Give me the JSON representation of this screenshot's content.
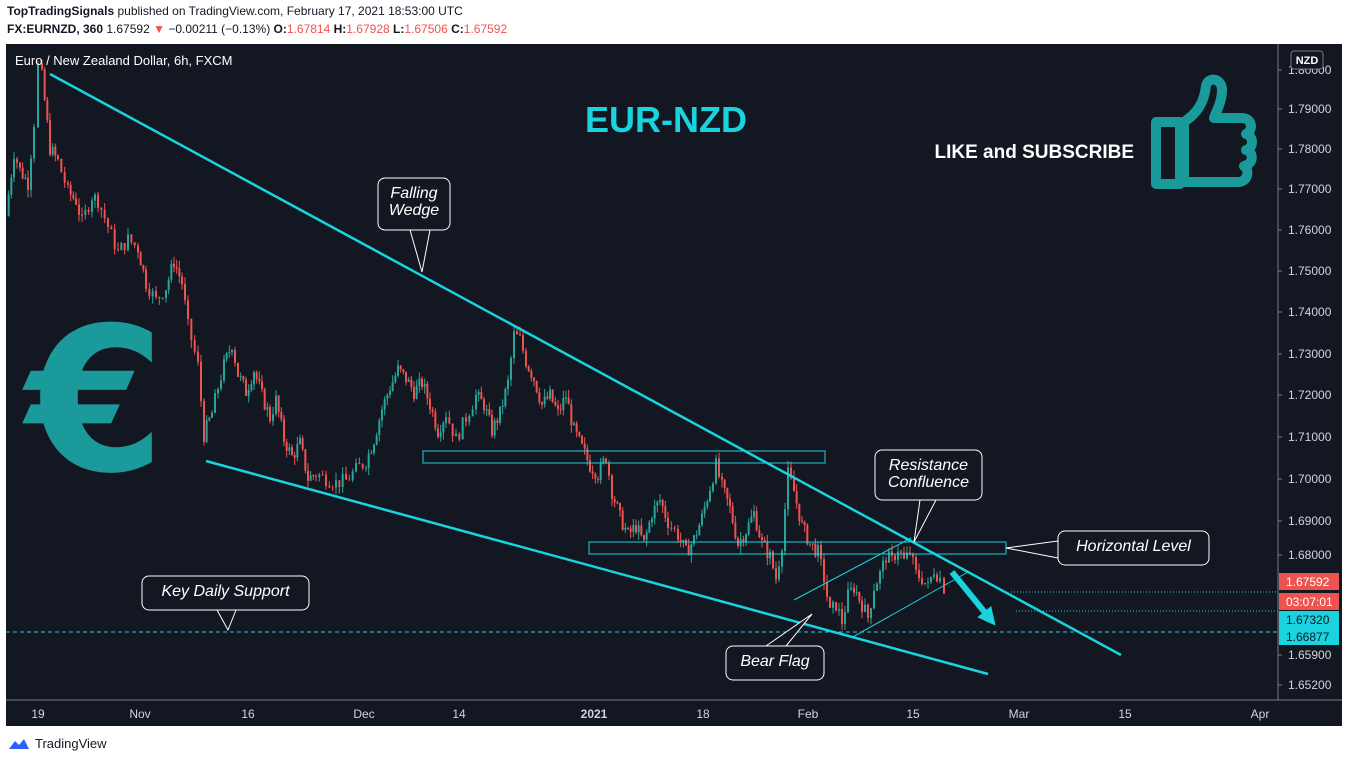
{
  "header": {
    "publisher": "TopTradingSignals",
    "published_text": "published on TradingView.com, February 17, 2021 18:53:00 UTC",
    "symbol": "FX:EURNZD, 360",
    "last": "1.67592",
    "change": "−0.00211 (−0.13%)",
    "open_label": "O:",
    "open": "1.67814",
    "high_label": "H:",
    "high": "1.67928",
    "low_label": "L:",
    "low": "1.67506",
    "close_label": "C:",
    "close": "1.67592"
  },
  "footer": {
    "brand": "TradingView"
  },
  "chart_data": {
    "type": "candlestick",
    "title": "Euro / New Zealand Dollar, 6h, FXCM",
    "headline": "EUR-NZD",
    "promo_text": "LIKE and SUBSCRIBE",
    "currency_badge": "NZD",
    "y_ticks": [
      "1.80000",
      "1.79000",
      "1.78000",
      "1.77000",
      "1.76000",
      "1.75000",
      "1.74000",
      "1.73000",
      "1.72000",
      "1.71000",
      "1.70000",
      "1.69000",
      "1.68000",
      "1.67320",
      "1.66877",
      "1.65900",
      "1.65200"
    ],
    "y_tick_values": [
      1.8,
      1.79,
      1.78,
      1.77,
      1.76,
      1.75,
      1.74,
      1.73,
      1.72,
      1.71,
      1.7,
      1.69,
      1.68,
      1.6732,
      1.66877,
      1.659,
      1.652
    ],
    "ylim": [
      1.65,
      1.801
    ],
    "x_ticks": [
      "19",
      "Nov",
      "16",
      "Dec",
      "14",
      "2021",
      "18",
      "Feb",
      "15",
      "Mar",
      "15",
      "Apr"
    ],
    "price_labels": {
      "last": "1.67592",
      "countdown": "03:07:01",
      "level_1": "1.67320",
      "level_2": "1.66877"
    },
    "annotations": [
      "Falling\nWedge",
      "Resistance\nConfluence",
      "Horizontal Level",
      "Key Daily Support",
      "Bear Flag"
    ],
    "key_levels": {
      "resistance_zone": [
        1.7055,
        1.708
      ],
      "horizontal_zone": [
        1.6812,
        1.684
      ],
      "key_daily_support": 1.66877
    },
    "price_path": [
      [
        0,
        1.7615
      ],
      [
        8,
        1.776
      ],
      [
        14,
        1.772
      ],
      [
        22,
        1.769
      ],
      [
        28,
        1.783
      ],
      [
        32,
        1.796
      ],
      [
        36,
        1.7935
      ],
      [
        44,
        1.777
      ],
      [
        52,
        1.774
      ],
      [
        62,
        1.767
      ],
      [
        70,
        1.765
      ],
      [
        76,
        1.76
      ],
      [
        86,
        1.766
      ],
      [
        92,
        1.765
      ],
      [
        102,
        1.759
      ],
      [
        112,
        1.753
      ],
      [
        122,
        1.756
      ],
      [
        132,
        1.754
      ],
      [
        140,
        1.746
      ],
      [
        150,
        1.742
      ],
      [
        160,
        1.745
      ],
      [
        168,
        1.751
      ],
      [
        176,
        1.746
      ],
      [
        182,
        1.736
      ],
      [
        192,
        1.727
      ],
      [
        198,
        1.711
      ],
      [
        206,
        1.716
      ],
      [
        212,
        1.722
      ],
      [
        218,
        1.727
      ],
      [
        226,
        1.732
      ],
      [
        232,
        1.725
      ],
      [
        240,
        1.721
      ],
      [
        248,
        1.726
      ],
      [
        256,
        1.72
      ],
      [
        264,
        1.715
      ],
      [
        270,
        1.719
      ],
      [
        278,
        1.71
      ],
      [
        286,
        1.706
      ],
      [
        294,
        1.709
      ],
      [
        302,
        1.701
      ],
      [
        310,
        1.702
      ],
      [
        320,
        1.701
      ],
      [
        330,
        1.7
      ],
      [
        340,
        1.7005
      ],
      [
        350,
        1.703
      ],
      [
        360,
        1.705
      ],
      [
        368,
        1.71
      ],
      [
        376,
        1.717
      ],
      [
        384,
        1.722
      ],
      [
        392,
        1.726
      ],
      [
        400,
        1.724
      ],
      [
        408,
        1.721
      ],
      [
        416,
        1.723
      ],
      [
        424,
        1.718
      ],
      [
        432,
        1.712
      ],
      [
        440,
        1.716
      ],
      [
        450,
        1.71
      ],
      [
        460,
        1.715
      ],
      [
        470,
        1.72
      ],
      [
        478,
        1.718
      ],
      [
        486,
        1.712
      ],
      [
        494,
        1.716
      ],
      [
        502,
        1.723
      ],
      [
        508,
        1.734
      ],
      [
        514,
        1.733
      ],
      [
        520,
        1.728
      ],
      [
        528,
        1.724
      ],
      [
        536,
        1.718
      ],
      [
        544,
        1.72
      ],
      [
        552,
        1.716
      ],
      [
        560,
        1.72
      ],
      [
        568,
        1.712
      ],
      [
        576,
        1.708
      ],
      [
        584,
        1.704
      ],
      [
        592,
        1.702
      ],
      [
        600,
        1.706
      ],
      [
        606,
        1.698
      ],
      [
        614,
        1.692
      ],
      [
        622,
        1.688
      ],
      [
        630,
        1.69
      ],
      [
        638,
        1.686
      ],
      [
        646,
        1.693
      ],
      [
        654,
        1.696
      ],
      [
        662,
        1.691
      ],
      [
        672,
        1.688
      ],
      [
        680,
        1.684
      ],
      [
        688,
        1.687
      ],
      [
        696,
        1.692
      ],
      [
        704,
        1.699
      ],
      [
        710,
        1.704
      ],
      [
        716,
        1.699
      ],
      [
        724,
        1.694
      ],
      [
        732,
        1.686
      ],
      [
        740,
        1.689
      ],
      [
        748,
        1.693
      ],
      [
        756,
        1.686
      ],
      [
        764,
        1.683
      ],
      [
        770,
        1.678
      ],
      [
        776,
        1.686
      ],
      [
        782,
        1.702
      ],
      [
        788,
        1.698
      ],
      [
        796,
        1.69
      ],
      [
        804,
        1.686
      ],
      [
        812,
        1.684
      ],
      [
        818,
        1.678
      ],
      [
        824,
        1.67
      ],
      [
        830,
        1.672
      ],
      [
        836,
        1.668
      ],
      [
        842,
        1.674
      ],
      [
        848,
        1.676
      ],
      [
        856,
        1.672
      ],
      [
        862,
        1.669
      ],
      [
        868,
        1.676
      ],
      [
        874,
        1.679
      ],
      [
        880,
        1.683
      ],
      [
        886,
        1.682
      ],
      [
        892,
        1.685
      ],
      [
        898,
        1.682
      ],
      [
        904,
        1.684
      ],
      [
        910,
        1.679
      ],
      [
        916,
        1.678
      ],
      [
        922,
        1.676
      ],
      [
        928,
        1.68
      ],
      [
        934,
        1.678
      ],
      [
        938,
        1.6759
      ]
    ]
  }
}
